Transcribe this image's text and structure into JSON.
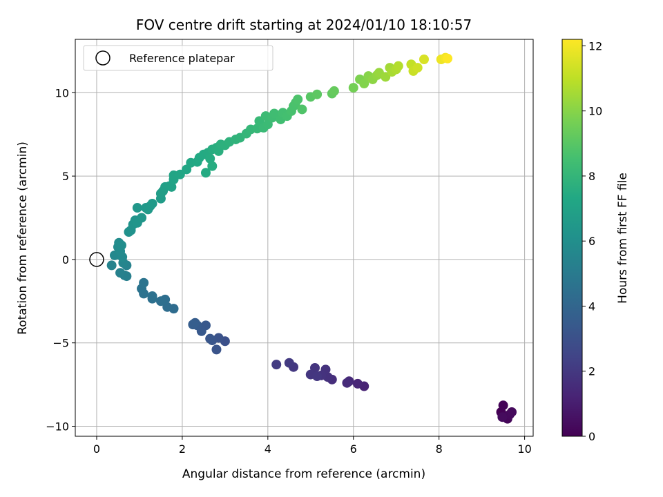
{
  "chart_data": {
    "type": "scatter",
    "title": "FOV centre drift starting at 2024/01/10 18:10:57",
    "xlabel": "Angular distance from reference (arcmin)",
    "ylabel": "Rotation from reference (arcmin)",
    "xlim": [
      -0.5,
      10.2
    ],
    "ylim": [
      -10.6,
      13.2
    ],
    "xticks": [
      0,
      2,
      4,
      6,
      8,
      10
    ],
    "xtick_labels": [
      "0",
      "2",
      "4",
      "6",
      "8",
      "10"
    ],
    "yticks": [
      -10,
      -5,
      0,
      5,
      10
    ],
    "ytick_labels": [
      "−10",
      "−5",
      "0",
      "5",
      "10"
    ],
    "grid": true,
    "legend": {
      "placement": "top-left",
      "entries": [
        "Reference platepar"
      ]
    },
    "reference_point": {
      "x": 0,
      "y": 0
    },
    "colorbar": {
      "label": "Hours from first FF file",
      "range": [
        0,
        12.2
      ],
      "ticks": [
        0,
        2,
        4,
        6,
        8,
        10,
        12
      ],
      "tick_labels": [
        "0",
        "2",
        "4",
        "6",
        "8",
        "10",
        "12"
      ],
      "colormap": "viridis"
    },
    "points": [
      {
        "x": 9.45,
        "y": -9.15,
        "t": 0.0
      },
      {
        "x": 9.5,
        "y": -8.75,
        "t": 0.1
      },
      {
        "x": 9.55,
        "y": -9.4,
        "t": 0.15
      },
      {
        "x": 9.6,
        "y": -9.55,
        "t": 0.2
      },
      {
        "x": 9.65,
        "y": -9.3,
        "t": 0.25
      },
      {
        "x": 9.7,
        "y": -9.15,
        "t": 0.3
      },
      {
        "x": 9.48,
        "y": -9.45,
        "t": 0.35
      },
      {
        "x": 6.25,
        "y": -7.6,
        "t": 1.2
      },
      {
        "x": 6.1,
        "y": -7.45,
        "t": 1.3
      },
      {
        "x": 5.9,
        "y": -7.3,
        "t": 1.4
      },
      {
        "x": 5.85,
        "y": -7.4,
        "t": 1.5
      },
      {
        "x": 5.5,
        "y": -7.2,
        "t": 1.6
      },
      {
        "x": 5.4,
        "y": -7.05,
        "t": 1.7
      },
      {
        "x": 5.35,
        "y": -6.6,
        "t": 1.75
      },
      {
        "x": 5.25,
        "y": -6.95,
        "t": 1.8
      },
      {
        "x": 5.1,
        "y": -6.5,
        "t": 1.85
      },
      {
        "x": 5.0,
        "y": -6.9,
        "t": 1.9
      },
      {
        "x": 5.15,
        "y": -7.0,
        "t": 1.95
      },
      {
        "x": 4.6,
        "y": -6.45,
        "t": 2.0
      },
      {
        "x": 4.5,
        "y": -6.2,
        "t": 2.05
      },
      {
        "x": 4.2,
        "y": -6.3,
        "t": 2.1
      },
      {
        "x": 3.0,
        "y": -4.9,
        "t": 3.0
      },
      {
        "x": 2.85,
        "y": -4.7,
        "t": 3.1
      },
      {
        "x": 2.8,
        "y": -5.4,
        "t": 3.15
      },
      {
        "x": 2.7,
        "y": -4.85,
        "t": 3.2
      },
      {
        "x": 2.65,
        "y": -4.75,
        "t": 3.25
      },
      {
        "x": 2.55,
        "y": -3.95,
        "t": 3.35
      },
      {
        "x": 2.45,
        "y": -4.3,
        "t": 3.4
      },
      {
        "x": 2.35,
        "y": -3.95,
        "t": 3.5
      },
      {
        "x": 2.3,
        "y": -3.8,
        "t": 3.55
      },
      {
        "x": 2.25,
        "y": -3.9,
        "t": 3.6
      },
      {
        "x": 1.8,
        "y": -2.95,
        "t": 4.3
      },
      {
        "x": 1.65,
        "y": -2.85,
        "t": 4.35
      },
      {
        "x": 1.6,
        "y": -2.4,
        "t": 4.4
      },
      {
        "x": 1.5,
        "y": -2.5,
        "t": 4.45
      },
      {
        "x": 1.3,
        "y": -2.35,
        "t": 4.5
      },
      {
        "x": 1.3,
        "y": -2.2,
        "t": 4.55
      },
      {
        "x": 1.1,
        "y": -2.05,
        "t": 4.6
      },
      {
        "x": 1.05,
        "y": -1.75,
        "t": 4.65
      },
      {
        "x": 1.1,
        "y": -1.4,
        "t": 4.7
      },
      {
        "x": 0.7,
        "y": -1.0,
        "t": 5.2
      },
      {
        "x": 0.65,
        "y": -0.95,
        "t": 5.25
      },
      {
        "x": 0.55,
        "y": -0.8,
        "t": 5.3
      },
      {
        "x": 0.7,
        "y": -0.35,
        "t": 5.35
      },
      {
        "x": 0.35,
        "y": -0.35,
        "t": 5.4
      },
      {
        "x": 0.62,
        "y": -0.2,
        "t": 5.5
      },
      {
        "x": 0.42,
        "y": 0.25,
        "t": 5.6
      },
      {
        "x": 0.5,
        "y": 0.3,
        "t": 5.65
      },
      {
        "x": 0.6,
        "y": 0.15,
        "t": 5.7
      },
      {
        "x": 0.55,
        "y": 0.5,
        "t": 5.75
      },
      {
        "x": 0.5,
        "y": 0.75,
        "t": 5.8
      },
      {
        "x": 0.52,
        "y": 1.0,
        "t": 5.85
      },
      {
        "x": 0.58,
        "y": 0.85,
        "t": 5.9
      },
      {
        "x": 0.75,
        "y": 1.65,
        "t": 6.1
      },
      {
        "x": 0.8,
        "y": 1.75,
        "t": 6.15
      },
      {
        "x": 0.85,
        "y": 2.1,
        "t": 6.2
      },
      {
        "x": 0.9,
        "y": 2.35,
        "t": 6.25
      },
      {
        "x": 0.95,
        "y": 2.2,
        "t": 6.3
      },
      {
        "x": 1.05,
        "y": 2.5,
        "t": 6.35
      },
      {
        "x": 0.95,
        "y": 3.1,
        "t": 6.4
      },
      {
        "x": 1.15,
        "y": 3.1,
        "t": 6.45
      },
      {
        "x": 1.2,
        "y": 3.0,
        "t": 6.5
      },
      {
        "x": 1.25,
        "y": 3.2,
        "t": 6.55
      },
      {
        "x": 1.3,
        "y": 3.35,
        "t": 6.6
      },
      {
        "x": 1.5,
        "y": 3.65,
        "t": 6.7
      },
      {
        "x": 1.5,
        "y": 3.95,
        "t": 6.75
      },
      {
        "x": 1.55,
        "y": 4.1,
        "t": 6.8
      },
      {
        "x": 1.6,
        "y": 4.35,
        "t": 6.85
      },
      {
        "x": 1.7,
        "y": 4.4,
        "t": 6.9
      },
      {
        "x": 1.75,
        "y": 4.35,
        "t": 6.95
      },
      {
        "x": 1.8,
        "y": 4.8,
        "t": 7.05
      },
      {
        "x": 1.8,
        "y": 5.05,
        "t": 7.1
      },
      {
        "x": 1.95,
        "y": 5.1,
        "t": 7.15
      },
      {
        "x": 2.1,
        "y": 5.4,
        "t": 7.2
      },
      {
        "x": 2.2,
        "y": 5.8,
        "t": 7.25
      },
      {
        "x": 2.35,
        "y": 5.85,
        "t": 7.3
      },
      {
        "x": 2.4,
        "y": 6.1,
        "t": 7.35
      },
      {
        "x": 2.5,
        "y": 6.3,
        "t": 7.4
      },
      {
        "x": 2.55,
        "y": 5.2,
        "t": 7.42
      },
      {
        "x": 2.6,
        "y": 6.4,
        "t": 7.45
      },
      {
        "x": 2.65,
        "y": 6.05,
        "t": 7.5
      },
      {
        "x": 2.7,
        "y": 5.6,
        "t": 7.52
      },
      {
        "x": 2.7,
        "y": 6.6,
        "t": 7.55
      },
      {
        "x": 2.8,
        "y": 6.7,
        "t": 7.6
      },
      {
        "x": 2.85,
        "y": 6.5,
        "t": 7.65
      },
      {
        "x": 2.9,
        "y": 6.9,
        "t": 7.7
      },
      {
        "x": 3.0,
        "y": 6.85,
        "t": 7.75
      },
      {
        "x": 3.1,
        "y": 7.05,
        "t": 7.8
      },
      {
        "x": 3.25,
        "y": 7.2,
        "t": 7.85
      },
      {
        "x": 3.35,
        "y": 7.3,
        "t": 7.9
      },
      {
        "x": 3.5,
        "y": 7.55,
        "t": 8.0
      },
      {
        "x": 3.6,
        "y": 7.8,
        "t": 8.05
      },
      {
        "x": 3.75,
        "y": 7.85,
        "t": 8.1
      },
      {
        "x": 3.8,
        "y": 8.3,
        "t": 8.15
      },
      {
        "x": 3.9,
        "y": 7.9,
        "t": 8.2
      },
      {
        "x": 4.0,
        "y": 8.1,
        "t": 8.25
      },
      {
        "x": 3.95,
        "y": 8.6,
        "t": 8.3
      },
      {
        "x": 4.1,
        "y": 8.5,
        "t": 8.35
      },
      {
        "x": 4.15,
        "y": 8.75,
        "t": 8.4
      },
      {
        "x": 4.3,
        "y": 8.4,
        "t": 8.45
      },
      {
        "x": 4.35,
        "y": 8.8,
        "t": 8.5
      },
      {
        "x": 4.45,
        "y": 8.6,
        "t": 8.55
      },
      {
        "x": 4.55,
        "y": 8.9,
        "t": 8.6
      },
      {
        "x": 4.6,
        "y": 9.2,
        "t": 8.65
      },
      {
        "x": 4.65,
        "y": 9.4,
        "t": 8.7
      },
      {
        "x": 4.7,
        "y": 9.6,
        "t": 8.75
      },
      {
        "x": 4.8,
        "y": 9.0,
        "t": 8.8
      },
      {
        "x": 5.0,
        "y": 9.75,
        "t": 9.0
      },
      {
        "x": 5.15,
        "y": 9.9,
        "t": 9.1
      },
      {
        "x": 5.5,
        "y": 9.95,
        "t": 9.2
      },
      {
        "x": 5.55,
        "y": 10.1,
        "t": 9.3
      },
      {
        "x": 6.0,
        "y": 10.3,
        "t": 9.6
      },
      {
        "x": 6.15,
        "y": 10.8,
        "t": 9.8
      },
      {
        "x": 6.25,
        "y": 10.55,
        "t": 9.9
      },
      {
        "x": 6.35,
        "y": 11.0,
        "t": 10.0
      },
      {
        "x": 6.45,
        "y": 10.8,
        "t": 10.1
      },
      {
        "x": 6.55,
        "y": 11.05,
        "t": 10.2
      },
      {
        "x": 6.6,
        "y": 11.2,
        "t": 10.3
      },
      {
        "x": 6.75,
        "y": 10.95,
        "t": 10.4
      },
      {
        "x": 6.85,
        "y": 11.5,
        "t": 10.5
      },
      {
        "x": 6.9,
        "y": 11.25,
        "t": 10.6
      },
      {
        "x": 7.0,
        "y": 11.4,
        "t": 10.7
      },
      {
        "x": 7.05,
        "y": 11.6,
        "t": 10.8
      },
      {
        "x": 7.35,
        "y": 11.7,
        "t": 11.1
      },
      {
        "x": 7.4,
        "y": 11.3,
        "t": 11.2
      },
      {
        "x": 7.5,
        "y": 11.5,
        "t": 11.3
      },
      {
        "x": 7.65,
        "y": 12.0,
        "t": 11.5
      },
      {
        "x": 8.05,
        "y": 12.0,
        "t": 11.9
      },
      {
        "x": 8.15,
        "y": 12.1,
        "t": 12.0
      },
      {
        "x": 8.2,
        "y": 12.05,
        "t": 12.2
      }
    ]
  }
}
